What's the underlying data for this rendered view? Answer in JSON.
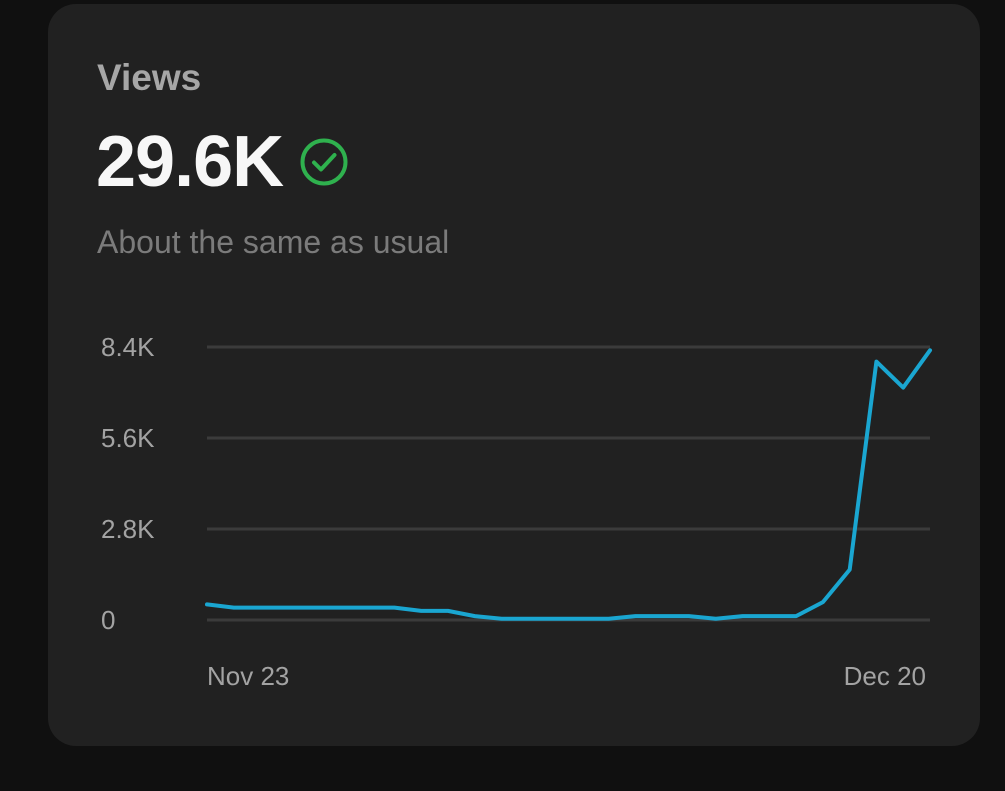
{
  "card": {
    "title": "Views",
    "value": "29.6K",
    "status_icon": "check-circle-icon",
    "status_color": "#2fb14e",
    "subtitle": "About the same as usual"
  },
  "colors": {
    "line": "#1aa6d1",
    "card_background": "#212121",
    "page_background": "#101010",
    "grid": "#3b3b3b"
  },
  "chart_data": {
    "type": "line",
    "title": "",
    "xlabel": "",
    "ylabel": "",
    "x_tick_labels": [
      "Nov 23",
      "Dec 20"
    ],
    "y_tick_labels": [
      "0",
      "2.8K",
      "5.6K",
      "8.4K"
    ],
    "y_ticks": [
      0,
      2800,
      5600,
      8400
    ],
    "ylim": [
      0,
      8400
    ],
    "x_start": "Nov 23",
    "x_end": "Dec 20",
    "grid": true,
    "legend": "none",
    "series": [
      {
        "values": [
          480,
          380,
          380,
          380,
          380,
          380,
          380,
          380,
          280,
          280,
          120,
          40,
          40,
          40,
          40,
          40,
          120,
          120,
          120,
          40,
          120,
          120,
          120,
          550,
          1550,
          7950,
          7150,
          8300
        ]
      }
    ]
  }
}
